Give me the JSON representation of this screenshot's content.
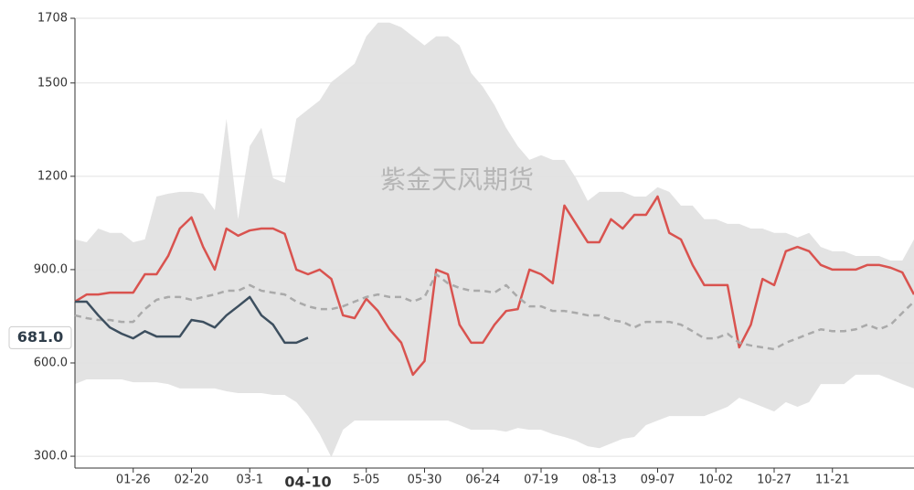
{
  "chart_data": {
    "type": "line",
    "watermark": "紫金天风期货",
    "ylim": [
      262,
      1708
    ],
    "yticks": [
      {
        "value": 300,
        "label": "300.0"
      },
      {
        "value": 600,
        "label": "600.0"
      },
      {
        "value": 900,
        "label": "900.0"
      },
      1200,
      1500,
      1708
    ],
    "grid": true,
    "highlight_category": 20,
    "current_label": {
      "value": 681,
      "label": "681.0"
    },
    "categories": [
      null,
      null,
      null,
      null,
      null,
      "01-26",
      null,
      null,
      null,
      null,
      "02-20",
      null,
      null,
      null,
      null,
      "03-1",
      null,
      null,
      null,
      null,
      "04-10",
      null,
      null,
      null,
      null,
      "5-05",
      null,
      null,
      null,
      null,
      "05-30",
      null,
      null,
      null,
      null,
      "06-24",
      null,
      null,
      null,
      null,
      "07-19",
      null,
      null,
      null,
      null,
      "08-13",
      null,
      null,
      null,
      null,
      "09-07",
      null,
      null,
      null,
      null,
      "10-02",
      null,
      null,
      null,
      null,
      "10-27",
      null,
      null,
      null,
      null,
      "11-21",
      null,
      null,
      null,
      null,
      null,
      null,
      null
    ],
    "band": {
      "color": "#e3e3e3",
      "upper": [
        997,
        988,
        1032,
        1018,
        1018,
        988,
        997,
        1135,
        1144,
        1150,
        1150,
        1144,
        1091,
        1385,
        1062,
        1297,
        1356,
        1194,
        1179,
        1385,
        1415,
        1444,
        1503,
        1532,
        1562,
        1650,
        1694,
        1694,
        1679,
        1650,
        1621,
        1650,
        1650,
        1621,
        1532,
        1488,
        1429,
        1356,
        1297,
        1253,
        1268,
        1253,
        1253,
        1194,
        1121,
        1150,
        1150,
        1150,
        1135,
        1135,
        1165,
        1150,
        1106,
        1106,
        1062,
        1062,
        1047,
        1047,
        1032,
        1032,
        1018,
        1018,
        1003,
        1018,
        973,
        959,
        959,
        944,
        944,
        944,
        929,
        929,
        997
      ],
      "lower": [
        532,
        547,
        547,
        547,
        547,
        538,
        538,
        538,
        532,
        518,
        518,
        518,
        518,
        509,
        503,
        503,
        503,
        497,
        497,
        474,
        429,
        371,
        297,
        385,
        415,
        415,
        415,
        415,
        415,
        415,
        415,
        415,
        415,
        400,
        385,
        385,
        385,
        379,
        391,
        385,
        385,
        371,
        362,
        350,
        332,
        326,
        341,
        356,
        362,
        400,
        415,
        429,
        429,
        429,
        429,
        444,
        459,
        488,
        474,
        459,
        444,
        474,
        459,
        474,
        532,
        532,
        532,
        562,
        562,
        562,
        547,
        532,
        518
      ]
    },
    "series": [
      {
        "color": "#d9534f",
        "style": "solid",
        "width": 2.5,
        "values": [
          797,
          820,
          820,
          826,
          826,
          826,
          885,
          885,
          944,
          1032,
          1068,
          973,
          900,
          1032,
          1009,
          1026,
          1032,
          1032,
          1015,
          900,
          885,
          900,
          870,
          753,
          744,
          806,
          767,
          708,
          665,
          562,
          606,
          900,
          885,
          723,
          665,
          665,
          723,
          767,
          773,
          900,
          885,
          856,
          1106,
          1047,
          988,
          988,
          1062,
          1032,
          1076,
          1076,
          1135,
          1018,
          997,
          915,
          850,
          850,
          850,
          650,
          723,
          870,
          850,
          959,
          973,
          959,
          915,
          900,
          900,
          900,
          915,
          915,
          906,
          891,
          820
        ]
      },
      {
        "color": "#aaaaaa",
        "style": "dashed",
        "width": 2.5,
        "values": [
          753,
          744,
          738,
          738,
          732,
          732,
          773,
          803,
          812,
          812,
          803,
          812,
          820,
          832,
          832,
          850,
          832,
          826,
          820,
          797,
          782,
          773,
          773,
          782,
          797,
          812,
          820,
          812,
          812,
          797,
          812,
          885,
          856,
          841,
          832,
          832,
          826,
          850,
          812,
          782,
          782,
          767,
          767,
          761,
          753,
          753,
          738,
          732,
          714,
          732,
          732,
          732,
          723,
          702,
          679,
          679,
          694,
          665,
          656,
          650,
          644,
          665,
          679,
          694,
          708,
          702,
          702,
          708,
          723,
          708,
          723,
          761,
          797
        ]
      },
      {
        "color": "#3d4f5f",
        "style": "solid",
        "width": 2.5,
        "values": [
          797,
          797,
          753,
          714,
          694,
          679,
          702,
          685,
          685,
          685,
          738,
          732,
          714,
          753,
          782,
          812,
          753,
          723,
          665,
          665,
          681,
          null,
          null,
          null,
          null,
          null,
          null,
          null,
          null,
          null,
          null,
          null,
          null,
          null,
          null,
          null,
          null,
          null,
          null,
          null,
          null,
          null,
          null,
          null,
          null,
          null,
          null,
          null,
          null,
          null,
          null,
          null,
          null,
          null,
          null,
          null,
          null,
          null,
          null,
          null,
          null,
          null,
          null,
          null,
          null,
          null,
          null,
          null,
          null,
          null,
          null,
          null,
          null
        ]
      }
    ]
  }
}
